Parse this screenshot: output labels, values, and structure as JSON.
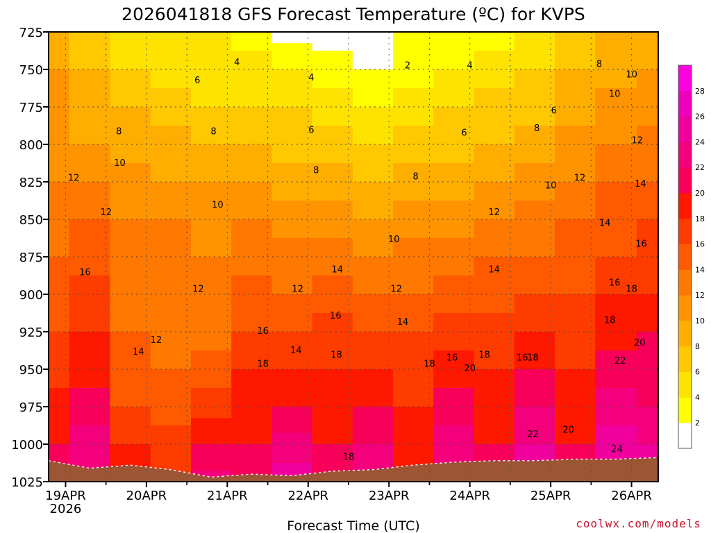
{
  "chart_data": {
    "type": "heatmap",
    "title": "2026041818 GFS Forecast Temperature (ºC) for KVPS",
    "xlabel": "Forecast Time (UTC)",
    "ylabel": "",
    "credit": "coolwx.com/models",
    "pressure_levels": [
      725,
      750,
      775,
      800,
      825,
      850,
      875,
      900,
      925,
      950,
      975,
      1000,
      1025
    ],
    "ylim": [
      725,
      1025
    ],
    "xlim": [
      -0.21,
      7.33
    ],
    "day_ticks": [
      {
        "label": "19APR",
        "sublabel": "2026",
        "day": 0
      },
      {
        "label": "20APR",
        "sublabel": "",
        "day": 1
      },
      {
        "label": "21APR",
        "sublabel": "",
        "day": 2
      },
      {
        "label": "22APR",
        "sublabel": "",
        "day": 3
      },
      {
        "label": "23APR",
        "sublabel": "",
        "day": 4
      },
      {
        "label": "24APR",
        "sublabel": "",
        "day": 5
      },
      {
        "label": "25APR",
        "sublabel": "",
        "day": 6
      },
      {
        "label": "26APR",
        "sublabel": "",
        "day": 7
      }
    ],
    "color_scale": {
      "levels": [
        2,
        4,
        6,
        8,
        10,
        12,
        14,
        16,
        18,
        20,
        22,
        24,
        26,
        28
      ],
      "colors": [
        "#ffffff",
        "#ffff00",
        "#ffe300",
        "#ffc800",
        "#ffae00",
        "#ff9400",
        "#ff7800",
        "#ff5a00",
        "#ff3c00",
        "#ff1800",
        "#f8005a",
        "#f4007c",
        "#f0009c",
        "#ec00bc",
        "#ff00e0"
      ],
      "ground_color": "#9c5535"
    },
    "surface_pressure": [
      {
        "day": -0.21,
        "p": 1011
      },
      {
        "day": 0.3,
        "p": 1016
      },
      {
        "day": 0.8,
        "p": 1014
      },
      {
        "day": 1.3,
        "p": 1017
      },
      {
        "day": 1.8,
        "p": 1022
      },
      {
        "day": 2.3,
        "p": 1020
      },
      {
        "day": 2.8,
        "p": 1021
      },
      {
        "day": 3.3,
        "p": 1018
      },
      {
        "day": 3.8,
        "p": 1017
      },
      {
        "day": 4.3,
        "p": 1014
      },
      {
        "day": 4.8,
        "p": 1012
      },
      {
        "day": 5.3,
        "p": 1011
      },
      {
        "day": 5.8,
        "p": 1011
      },
      {
        "day": 6.3,
        "p": 1010
      },
      {
        "day": 6.8,
        "p": 1010
      },
      {
        "day": 7.33,
        "p": 1009
      }
    ],
    "temperature_profiles": [
      {
        "day": -0.21,
        "temps": [
          [
            725,
            9
          ],
          [
            750,
            10
          ],
          [
            775,
            10
          ],
          [
            800,
            11
          ],
          [
            825,
            12
          ],
          [
            850,
            13
          ],
          [
            875,
            14
          ],
          [
            900,
            15
          ],
          [
            925,
            16
          ],
          [
            950,
            17
          ],
          [
            975,
            19
          ],
          [
            1000,
            20
          ],
          [
            1025,
            21
          ]
        ]
      },
      {
        "day": 0.3,
        "temps": [
          [
            725,
            7
          ],
          [
            750,
            8
          ],
          [
            775,
            9
          ],
          [
            800,
            10
          ],
          [
            825,
            12
          ],
          [
            850,
            14
          ],
          [
            875,
            15
          ],
          [
            900,
            17
          ],
          [
            925,
            18
          ],
          [
            950,
            19
          ],
          [
            975,
            21
          ],
          [
            1000,
            23
          ],
          [
            1025,
            24
          ]
        ]
      },
      {
        "day": 0.8,
        "temps": [
          [
            725,
            5
          ],
          [
            750,
            6
          ],
          [
            775,
            8
          ],
          [
            800,
            9
          ],
          [
            825,
            11
          ],
          [
            850,
            12
          ],
          [
            875,
            13
          ],
          [
            900,
            13
          ],
          [
            925,
            14
          ],
          [
            950,
            15
          ],
          [
            975,
            16
          ],
          [
            1000,
            18
          ],
          [
            1025,
            19
          ]
        ]
      },
      {
        "day": 1.3,
        "temps": [
          [
            725,
            4
          ],
          [
            750,
            5
          ],
          [
            775,
            7
          ],
          [
            800,
            9
          ],
          [
            825,
            10
          ],
          [
            850,
            12
          ],
          [
            875,
            13
          ],
          [
            900,
            13
          ],
          [
            925,
            13
          ],
          [
            950,
            14
          ],
          [
            975,
            15
          ],
          [
            1000,
            17
          ],
          [
            1025,
            18
          ]
        ]
      },
      {
        "day": 1.8,
        "temps": [
          [
            725,
            4
          ],
          [
            750,
            5
          ],
          [
            775,
            6
          ],
          [
            800,
            8
          ],
          [
            825,
            10
          ],
          [
            850,
            11
          ],
          [
            875,
            12
          ],
          [
            900,
            12
          ],
          [
            925,
            13
          ],
          [
            950,
            15
          ],
          [
            975,
            17
          ],
          [
            1000,
            20
          ],
          [
            1025,
            23
          ]
        ]
      },
      {
        "day": 2.3,
        "temps": [
          [
            725,
            3
          ],
          [
            750,
            5
          ],
          [
            775,
            6
          ],
          [
            800,
            8
          ],
          [
            825,
            10
          ],
          [
            850,
            12
          ],
          [
            875,
            13
          ],
          [
            900,
            15
          ],
          [
            925,
            16
          ],
          [
            950,
            18
          ],
          [
            975,
            19
          ],
          [
            1000,
            20
          ],
          [
            1025,
            21
          ]
        ]
      },
      {
        "day": 2.8,
        "temps": [
          [
            725,
            1
          ],
          [
            750,
            4
          ],
          [
            775,
            6
          ],
          [
            800,
            7
          ],
          [
            825,
            9
          ],
          [
            850,
            11
          ],
          [
            875,
            13
          ],
          [
            900,
            14
          ],
          [
            925,
            16
          ],
          [
            950,
            18
          ],
          [
            975,
            20
          ],
          [
            1000,
            23
          ],
          [
            1025,
            25
          ]
        ]
      },
      {
        "day": 3.3,
        "temps": [
          [
            725,
            1
          ],
          [
            750,
            3
          ],
          [
            775,
            5
          ],
          [
            800,
            7
          ],
          [
            825,
            9
          ],
          [
            850,
            11
          ],
          [
            875,
            13
          ],
          [
            900,
            15
          ],
          [
            925,
            17
          ],
          [
            950,
            18
          ],
          [
            975,
            19
          ],
          [
            1000,
            20
          ],
          [
            1025,
            21
          ]
        ]
      },
      {
        "day": 3.8,
        "temps": [
          [
            725,
            1
          ],
          [
            750,
            2
          ],
          [
            775,
            4
          ],
          [
            800,
            6
          ],
          [
            825,
            8
          ],
          [
            850,
            10
          ],
          [
            875,
            12
          ],
          [
            900,
            14
          ],
          [
            925,
            16
          ],
          [
            950,
            18
          ],
          [
            975,
            20
          ],
          [
            1000,
            22
          ],
          [
            1025,
            24
          ]
        ]
      },
      {
        "day": 4.3,
        "temps": [
          [
            725,
            2
          ],
          [
            750,
            3
          ],
          [
            775,
            5
          ],
          [
            800,
            7
          ],
          [
            825,
            9
          ],
          [
            850,
            11
          ],
          [
            875,
            13
          ],
          [
            900,
            14
          ],
          [
            925,
            16
          ],
          [
            950,
            17
          ],
          [
            975,
            18
          ],
          [
            1000,
            19
          ],
          [
            1025,
            20
          ]
        ]
      },
      {
        "day": 4.8,
        "temps": [
          [
            725,
            2
          ],
          [
            750,
            4
          ],
          [
            775,
            6
          ],
          [
            800,
            7
          ],
          [
            825,
            9
          ],
          [
            850,
            11
          ],
          [
            875,
            13
          ],
          [
            900,
            15
          ],
          [
            925,
            17
          ],
          [
            950,
            19
          ],
          [
            975,
            21
          ],
          [
            1000,
            23
          ],
          [
            1025,
            25
          ]
        ]
      },
      {
        "day": 5.3,
        "temps": [
          [
            725,
            3
          ],
          [
            750,
            5
          ],
          [
            775,
            7
          ],
          [
            800,
            8
          ],
          [
            825,
            10
          ],
          [
            850,
            12
          ],
          [
            875,
            14
          ],
          [
            900,
            15
          ],
          [
            925,
            17
          ],
          [
            950,
            18
          ],
          [
            975,
            19
          ],
          [
            1000,
            20
          ],
          [
            1025,
            21
          ]
        ]
      },
      {
        "day": 5.8,
        "temps": [
          [
            725,
            5
          ],
          [
            750,
            6
          ],
          [
            775,
            7
          ],
          [
            800,
            9
          ],
          [
            825,
            11
          ],
          [
            850,
            13
          ],
          [
            875,
            14
          ],
          [
            900,
            16
          ],
          [
            925,
            18
          ],
          [
            950,
            20
          ],
          [
            975,
            22
          ],
          [
            1000,
            24
          ],
          [
            1025,
            26
          ]
        ]
      },
      {
        "day": 6.3,
        "temps": [
          [
            725,
            6
          ],
          [
            750,
            8
          ],
          [
            775,
            9
          ],
          [
            800,
            11
          ],
          [
            825,
            12
          ],
          [
            850,
            14
          ],
          [
            875,
            15
          ],
          [
            900,
            16
          ],
          [
            925,
            17
          ],
          [
            950,
            18
          ],
          [
            975,
            19
          ],
          [
            1000,
            20
          ],
          [
            1025,
            21
          ]
        ]
      },
      {
        "day": 6.8,
        "temps": [
          [
            725,
            8
          ],
          [
            750,
            9
          ],
          [
            775,
            11
          ],
          [
            800,
            12
          ],
          [
            825,
            14
          ],
          [
            850,
            15
          ],
          [
            875,
            16
          ],
          [
            900,
            18
          ],
          [
            925,
            19
          ],
          [
            950,
            21
          ],
          [
            975,
            23
          ],
          [
            1000,
            25
          ],
          [
            1025,
            27
          ]
        ]
      },
      {
        "day": 7.33,
        "temps": [
          [
            725,
            9
          ],
          [
            750,
            10
          ],
          [
            775,
            11
          ],
          [
            800,
            13
          ],
          [
            825,
            14
          ],
          [
            850,
            16
          ],
          [
            875,
            17
          ],
          [
            900,
            18
          ],
          [
            925,
            20
          ],
          [
            950,
            21
          ],
          [
            975,
            22
          ],
          [
            1000,
            24
          ],
          [
            1025,
            25
          ]
        ]
      }
    ],
    "contour_labels": [
      {
        "text": "4",
        "day": 2.12,
        "p": 745
      },
      {
        "text": "6",
        "day": 1.63,
        "p": 757
      },
      {
        "text": "8",
        "day": 0.66,
        "p": 791
      },
      {
        "text": "10",
        "day": 0.67,
        "p": 812
      },
      {
        "text": "12",
        "day": 0.1,
        "p": 822
      },
      {
        "text": "12",
        "day": 0.5,
        "p": 845
      },
      {
        "text": "16",
        "day": 0.24,
        "p": 885
      },
      {
        "text": "12",
        "day": 1.64,
        "p": 896
      },
      {
        "text": "14",
        "day": 0.9,
        "p": 938
      },
      {
        "text": "12",
        "day": 1.12,
        "p": 930
      },
      {
        "text": "10",
        "day": 1.88,
        "p": 840
      },
      {
        "text": "8",
        "day": 1.83,
        "p": 791
      },
      {
        "text": "4",
        "day": 3.04,
        "p": 755
      },
      {
        "text": "6",
        "day": 3.04,
        "p": 790
      },
      {
        "text": "8",
        "day": 3.1,
        "p": 817
      },
      {
        "text": "12",
        "day": 2.87,
        "p": 896
      },
      {
        "text": "14",
        "day": 3.36,
        "p": 883
      },
      {
        "text": "16",
        "day": 2.44,
        "p": 924
      },
      {
        "text": "14",
        "day": 2.85,
        "p": 937
      },
      {
        "text": "16",
        "day": 3.34,
        "p": 914
      },
      {
        "text": "18",
        "day": 2.44,
        "p": 946
      },
      {
        "text": "18",
        "day": 3.35,
        "p": 940
      },
      {
        "text": "18",
        "day": 3.5,
        "p": 1008
      },
      {
        "text": "2",
        "day": 4.23,
        "p": 747
      },
      {
        "text": "4",
        "day": 5.0,
        "p": 747
      },
      {
        "text": "6",
        "day": 4.93,
        "p": 792
      },
      {
        "text": "8",
        "day": 4.33,
        "p": 821
      },
      {
        "text": "10",
        "day": 4.06,
        "p": 863
      },
      {
        "text": "12",
        "day": 4.09,
        "p": 896
      },
      {
        "text": "14",
        "day": 4.17,
        "p": 918
      },
      {
        "text": "16",
        "day": 4.78,
        "p": 942
      },
      {
        "text": "18",
        "day": 4.5,
        "p": 946
      },
      {
        "text": "20",
        "day": 5.0,
        "p": 949
      },
      {
        "text": "18",
        "day": 5.18,
        "p": 940
      },
      {
        "text": "6",
        "day": 6.04,
        "p": 777
      },
      {
        "text": "8",
        "day": 5.83,
        "p": 789
      },
      {
        "text": "8",
        "day": 6.6,
        "p": 746
      },
      {
        "text": "10",
        "day": 7.0,
        "p": 753
      },
      {
        "text": "10",
        "day": 6.79,
        "p": 766
      },
      {
        "text": "12",
        "day": 5.3,
        "p": 845
      },
      {
        "text": "10",
        "day": 6.0,
        "p": 827
      },
      {
        "text": "12",
        "day": 6.36,
        "p": 822
      },
      {
        "text": "12",
        "day": 7.07,
        "p": 797
      },
      {
        "text": "14",
        "day": 5.3,
        "p": 883
      },
      {
        "text": "14",
        "day": 6.67,
        "p": 852
      },
      {
        "text": "14",
        "day": 7.11,
        "p": 826
      },
      {
        "text": "16",
        "day": 7.12,
        "p": 866
      },
      {
        "text": "16",
        "day": 6.79,
        "p": 892
      },
      {
        "text": "18",
        "day": 7.0,
        "p": 896
      },
      {
        "text": "18",
        "day": 6.73,
        "p": 917
      },
      {
        "text": "16",
        "day": 5.65,
        "p": 942
      },
      {
        "text": "18",
        "day": 5.78,
        "p": 942
      },
      {
        "text": "20",
        "day": 7.1,
        "p": 932
      },
      {
        "text": "22",
        "day": 6.86,
        "p": 944
      },
      {
        "text": "22",
        "day": 5.78,
        "p": 993
      },
      {
        "text": "20",
        "day": 6.22,
        "p": 990
      },
      {
        "text": "24",
        "day": 6.82,
        "p": 1003
      }
    ]
  }
}
